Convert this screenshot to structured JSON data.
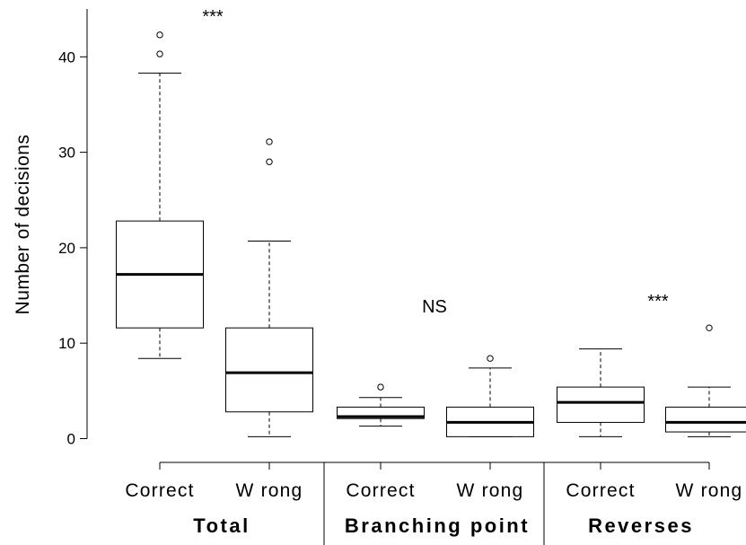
{
  "chart_data": {
    "type": "box",
    "ylabel": "Number of decisions",
    "ylim": [
      0,
      45
    ],
    "yticks": [
      0,
      10,
      20,
      30,
      40
    ],
    "groups": [
      {
        "label": "Total",
        "annotation": "***"
      },
      {
        "label": "Branching point",
        "annotation": "NS"
      },
      {
        "label": "Reverses",
        "annotation": "***"
      }
    ],
    "boxes": [
      {
        "group": "Total",
        "category": "Correct",
        "min": 8.4,
        "q1": 11.6,
        "median": 17.2,
        "q3": 22.8,
        "max": 38.3,
        "outliers": [
          40.3,
          42.3
        ]
      },
      {
        "group": "Total",
        "category": "W rong",
        "min": 0.2,
        "q1": 2.8,
        "median": 6.9,
        "q3": 11.6,
        "max": 20.7,
        "outliers": [
          29.0,
          31.1
        ]
      },
      {
        "group": "Branching point",
        "category": "Correct",
        "min": 1.3,
        "q1": 2.1,
        "median": 2.3,
        "q3": 3.3,
        "max": 4.3,
        "outliers": [
          5.4
        ]
      },
      {
        "group": "Branching point",
        "category": "W rong",
        "min": 0.2,
        "q1": 0.2,
        "median": 1.7,
        "q3": 3.3,
        "max": 7.4,
        "outliers": [
          8.4
        ]
      },
      {
        "group": "Reverses",
        "category": "Correct",
        "min": 0.2,
        "q1": 1.7,
        "median": 3.8,
        "q3": 5.4,
        "max": 9.4,
        "outliers": []
      },
      {
        "group": "Reverses",
        "category": "W rong",
        "min": 0.2,
        "q1": 0.7,
        "median": 1.7,
        "q3": 3.3,
        "max": 5.4,
        "outliers": [
          11.6
        ]
      }
    ]
  }
}
